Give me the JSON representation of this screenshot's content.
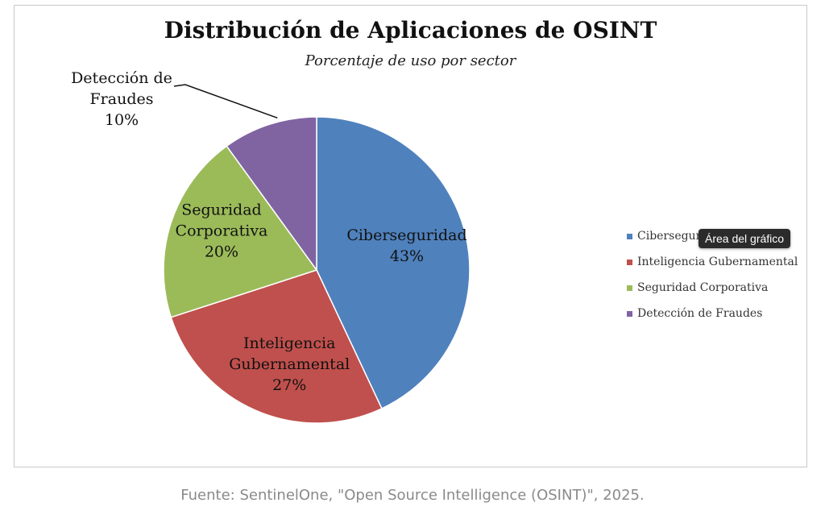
{
  "chart_data": {
    "type": "pie",
    "title": "Distribución de Aplicaciones de OSINT",
    "subtitle": "Porcentaje de uso por sector",
    "categories": [
      "Ciberseguridad",
      "Inteligencia Gubernamental",
      "Seguridad Corporativa",
      "Detección de Fraudes"
    ],
    "values": [
      43,
      27,
      20,
      10
    ],
    "label_lines": [
      [
        "Ciberseguridad",
        "43%"
      ],
      [
        "Inteligencia",
        "Gubernamental",
        "27%"
      ],
      [
        "Seguridad",
        "Corporativa",
        "20%"
      ],
      [
        "Detección de",
        "Fraudes",
        "10%"
      ]
    ],
    "colors": [
      "#4f81bd",
      "#c0504d",
      "#9bbb59",
      "#8064a2"
    ],
    "legend_position": "right"
  },
  "tooltip": {
    "text": "Área del gráfico"
  },
  "source": {
    "text": "Fuente: SentinelOne, \"Open Source Intelligence (OSINT)\", 2025."
  }
}
